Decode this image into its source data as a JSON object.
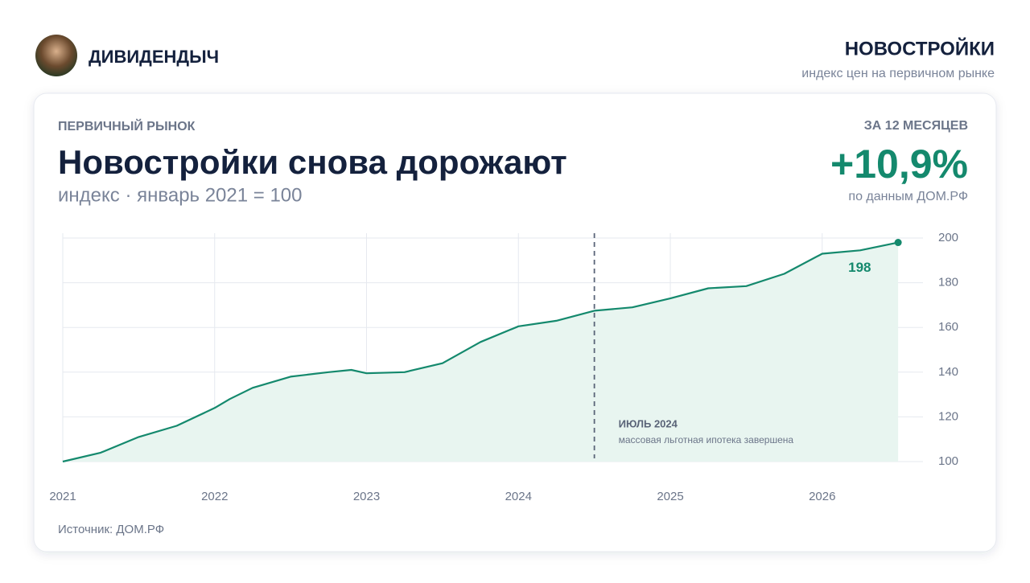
{
  "header": {
    "brand": "ДИВИДЕНДЫЧ",
    "section": "НОВОСТРОЙКИ",
    "section_subtitle": "индекс цен на первичном рынке"
  },
  "card": {
    "eyebrow": "ПЕРВИЧНЫЙ РЫНОК",
    "period": "ЗА 12 МЕСЯЦЕВ",
    "change": "+10,9%",
    "change_source": "по данным ДОМ.РФ",
    "source": "Источник: ДОМ.РФ"
  },
  "chart_data": {
    "type": "line",
    "title": "Новостройки снова дорожают",
    "subtitle": "индекс · январь 2021 = 100",
    "x": [
      2021,
      2021.25,
      2021.5,
      2021.75,
      2022,
      2022.1,
      2022.25,
      2022.5,
      2022.75,
      2022.9,
      2023,
      2023.25,
      2023.5,
      2023.75,
      2024,
      2024.25,
      2024.5,
      2024.75,
      2025,
      2025.25,
      2025.5,
      2025.75,
      2026,
      2026.25,
      2026.5
    ],
    "values": [
      100,
      104,
      111,
      116,
      124,
      128,
      133,
      138,
      140,
      141,
      139.5,
      140,
      144,
      153.5,
      160.5,
      163,
      167.5,
      169,
      173,
      177.5,
      178.5,
      184,
      193,
      194.5,
      198
    ],
    "color": "#14896d",
    "area_color": "#e8f5f0",
    "xlim": [
      2021,
      2026.6
    ],
    "xticks": [
      2021,
      2022,
      2023,
      2024,
      2025,
      2026
    ],
    "ylim": [
      100,
      200
    ],
    "yticks": [
      100,
      120,
      140,
      160,
      180,
      200
    ],
    "grid": true,
    "annotation": {
      "x": 2024.5,
      "title": "ИЮЛЬ 2024",
      "text": "массовая льготная ипотека завершена"
    }
  }
}
